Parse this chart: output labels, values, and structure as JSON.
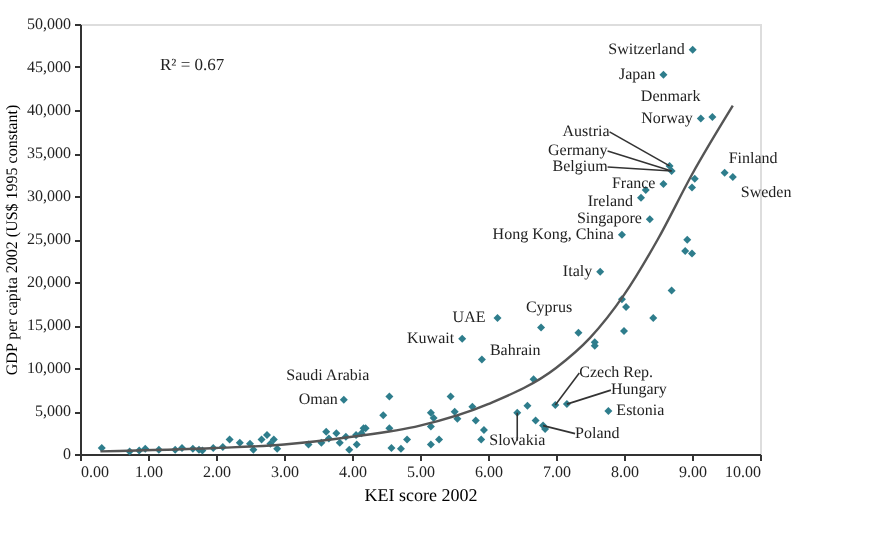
{
  "chart_data": {
    "type": "scatter",
    "xlabel": "KEI score 2002",
    "ylabel": "GDP per capita 2002 (US$ 1995 constant)",
    "xlim": [
      0,
      10
    ],
    "ylim": [
      0,
      50000
    ],
    "xticks": [
      {
        "value": 0,
        "label": "0.00"
      },
      {
        "value": 1,
        "label": "1.00"
      },
      {
        "value": 2,
        "label": "2.00"
      },
      {
        "value": 3,
        "label": "3.00"
      },
      {
        "value": 4,
        "label": "4.00"
      },
      {
        "value": 5,
        "label": "5.00"
      },
      {
        "value": 6,
        "label": "6.00"
      },
      {
        "value": 7,
        "label": "7.00"
      },
      {
        "value": 8,
        "label": "8.00"
      },
      {
        "value": 9,
        "label": "9.00"
      },
      {
        "value": 10,
        "label": "10.00"
      }
    ],
    "yticks": [
      0,
      {
        "value": 5000,
        "label": "5,000"
      },
      {
        "value": 10000,
        "label": "10,000"
      },
      {
        "value": 15000,
        "label": "15,000"
      },
      {
        "value": 20000,
        "label": "20,000"
      },
      {
        "value": 25000,
        "label": "25,000"
      },
      {
        "value": 30000,
        "label": "30,000"
      },
      {
        "value": 35000,
        "label": "35,000"
      },
      {
        "value": 40000,
        "label": "40,000"
      },
      {
        "value": 45000,
        "label": "45,000"
      },
      {
        "value": 50000,
        "label": "50,000"
      }
    ],
    "grid": false,
    "series": [
      {
        "color": "#2e7d8c",
        "marker": "diamond",
        "x": [
          9.01,
          8.58,
          9.3,
          9.13,
          8.67,
          8.7,
          8.58,
          9.04,
          9.0,
          9.48,
          9.6,
          8.32,
          8.25,
          8.38,
          7.97,
          8.93,
          8.9,
          9.0,
          7.65,
          6.14,
          6.78,
          5.62,
          5.91,
          7.33,
          7.57,
          7.57,
          8.0,
          8.43,
          7.97,
          8.03,
          8.7,
          6.67,
          6.99,
          7.16,
          7.77,
          6.43,
          6.7,
          6.81,
          6.84,
          6.58,
          3.88,
          4.55,
          5.45,
          5.77,
          4.46,
          5.16,
          5.2,
          5.51,
          5.55,
          5.82,
          5.94,
          5.9,
          4.55,
          4.17,
          4.81,
          4.58,
          4.72,
          5.16,
          5.28,
          5.16,
          4.06,
          0.32,
          0.73,
          0.96,
          1.16,
          1.4,
          1.5,
          1.66,
          1.8,
          1.96,
          2.1,
          2.2,
          2.35,
          2.5,
          2.67,
          2.75,
          2.8,
          2.9,
          2.85,
          1.75,
          0.87,
          2.55,
          3.36,
          3.55,
          3.62,
          3.77,
          3.82,
          3.91,
          3.96,
          4.14,
          4.2,
          4.07,
          3.66
        ],
        "values": [
          47000,
          44100,
          39200,
          39000,
          33500,
          32900,
          31400,
          32000,
          31000,
          32700,
          32200,
          30700,
          29800,
          27300,
          25500,
          24900,
          23600,
          23300,
          21200,
          15800,
          14700,
          13400,
          11000,
          14100,
          13000,
          12600,
          14300,
          15800,
          18000,
          17100,
          19000,
          8700,
          5700,
          5800,
          5000,
          4800,
          3900,
          3300,
          2900,
          5600,
          6300,
          6700,
          6700,
          5500,
          4500,
          4800,
          4200,
          4900,
          4100,
          3900,
          2800,
          1700,
          3000,
          3000,
          1700,
          700,
          600,
          1100,
          1700,
          3200,
          2200,
          700,
          300,
          600,
          500,
          500,
          700,
          600,
          400,
          700,
          800,
          1700,
          1300,
          1200,
          1700,
          2200,
          1200,
          600,
          1700,
          500,
          400,
          500,
          1100,
          1300,
          2600,
          2400,
          1300,
          2000,
          500,
          2400,
          3000,
          1100,
          1800
        ]
      },
      {
        "color": "#555555",
        "type": "line",
        "x": [
          0.3,
          2,
          3,
          4,
          5,
          6,
          7,
          7.5,
          8,
          8.5,
          9,
          9.6
        ],
        "values": [
          300,
          700,
          1100,
          2000,
          3300,
          5800,
          10000,
          13500,
          18500,
          25000,
          32500,
          40500
        ]
      }
    ],
    "annotations": [
      "R² = 0.67",
      {
        "text": "Switzerland",
        "x": 9.01,
        "y": 47000
      },
      {
        "text": "Japan",
        "x": 8.58,
        "y": 44100
      },
      {
        "text": "Denmark",
        "x": 9.3,
        "y": 39200
      },
      {
        "text": "Norway",
        "x": 9.13,
        "y": 39000
      },
      {
        "text": "Austria",
        "x": 8.67,
        "y": 33500
      },
      {
        "text": "Germany",
        "x": 8.7,
        "y": 32900
      },
      {
        "text": "Belgium",
        "x": 8.7,
        "y": 32900
      },
      {
        "text": "France",
        "x": 8.58,
        "y": 31400
      },
      {
        "text": "Ireland",
        "x": 8.25,
        "y": 29800
      },
      {
        "text": "Singapore",
        "x": 8.38,
        "y": 27300
      },
      {
        "text": "Hong Kong, China",
        "x": 7.97,
        "y": 25500
      },
      {
        "text": "Italy",
        "x": 7.65,
        "y": 21200
      },
      {
        "text": "UAE",
        "x": 6.14,
        "y": 15800
      },
      {
        "text": "Cyprus",
        "x": 6.78,
        "y": 14700
      },
      {
        "text": "Kuwait",
        "x": 5.62,
        "y": 13400
      },
      {
        "text": "Bahrain",
        "x": 5.91,
        "y": 11000
      },
      {
        "text": "Saudi Arabia",
        "x": 4.55,
        "y": 6700
      },
      {
        "text": "Oman",
        "x": 3.88,
        "y": 6300
      },
      {
        "text": "Czech Rep.",
        "x": 6.99,
        "y": 5700
      },
      {
        "text": "Hungary",
        "x": 7.16,
        "y": 5800
      },
      {
        "text": "Estonia",
        "x": 7.77,
        "y": 5000
      },
      {
        "text": "Poland",
        "x": 6.81,
        "y": 3300
      },
      {
        "text": "Slovakia",
        "x": 6.43,
        "y": 4800
      },
      {
        "text": "Finland",
        "x": 9.48,
        "y": 32700
      },
      {
        "text": "Sweden",
        "x": 9.6,
        "y": 32200
      }
    ]
  }
}
